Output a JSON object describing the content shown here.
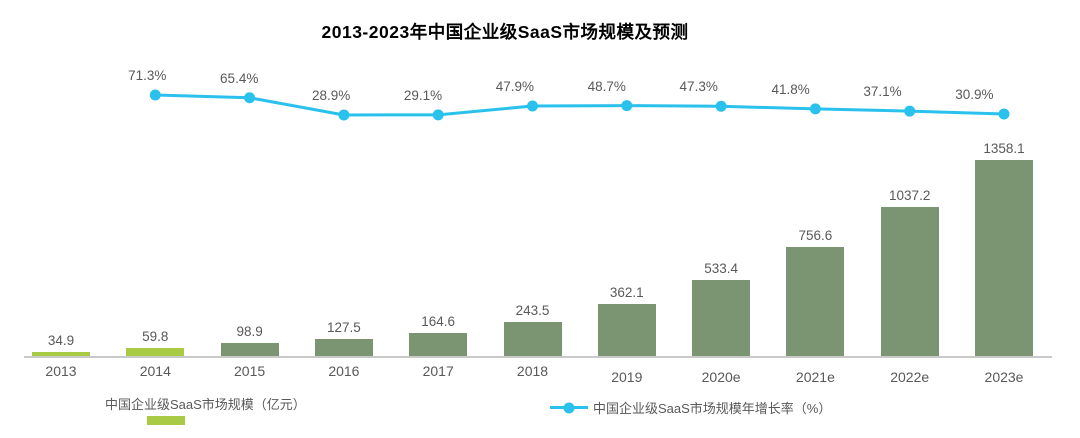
{
  "title": "2013-2023年中国企业级SaaS市场规模及预测",
  "colors": {
    "bar_highlight": "#a9ca45",
    "bar_normal": "#7b9471",
    "line": "#2bc1ed",
    "text_gray": "#595959",
    "axis_line": "#c9c9c9",
    "title_text": "#000000"
  },
  "legend": {
    "bar_label": "中国企业级SaaS市场规模（亿元）",
    "line_label": "中国企业级SaaS市场规模年增长率（%）"
  },
  "chart_data": {
    "type": "combo-bar-line",
    "title": "2013-2023年中国企业级SaaS市场规模及预测",
    "categories": [
      "2013",
      "2014",
      "2015",
      "2016",
      "2017",
      "2018",
      "2019",
      "2020e",
      "2021e",
      "2022e",
      "2023e"
    ],
    "series": [
      {
        "name": "中国企业级SaaS市场规模（亿元）",
        "type": "bar",
        "unit": "亿元",
        "values": [
          34.9,
          59.8,
          98.9,
          127.5,
          164.6,
          243.5,
          362.1,
          533.4,
          756.6,
          1037.2,
          1358.1
        ],
        "highlighted_categories": [
          "2013",
          "2014"
        ]
      },
      {
        "name": "中国企业级SaaS市场规模年增长率（%）",
        "type": "line",
        "unit": "%",
        "values": [
          null,
          71.3,
          65.4,
          28.9,
          29.1,
          47.9,
          48.7,
          47.3,
          41.8,
          37.1,
          30.9
        ]
      }
    ],
    "value_labels_shown": true,
    "gridlines": false,
    "legend_position": "bottom"
  }
}
